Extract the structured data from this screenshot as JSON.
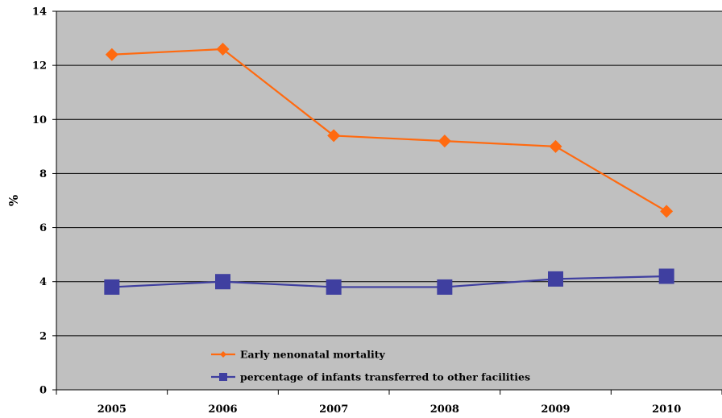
{
  "chart_data": {
    "type": "line",
    "title": "",
    "xlabel": "",
    "ylabel": "%",
    "categories": [
      "2005",
      "2006",
      "2007",
      "2008",
      "2009",
      "2010"
    ],
    "ylim": [
      0,
      14
    ],
    "yticks": [
      0,
      2,
      4,
      6,
      8,
      10,
      12,
      14
    ],
    "grid": "horizontal",
    "legend_position": "bottom-center",
    "series": [
      {
        "name": "Early nenonatal mortality",
        "values": [
          12.4,
          12.6,
          9.4,
          9.2,
          9.0,
          6.6
        ],
        "color": "#FF6A10",
        "marker": "diamond"
      },
      {
        "name": "percentage of infants transferred to other facilities",
        "values": [
          3.8,
          4.0,
          3.8,
          3.8,
          4.1,
          4.2
        ],
        "color": "#3F3FA0",
        "marker": "square"
      }
    ],
    "plot_background": "#C0C0C0",
    "gridline_color": "#000000"
  }
}
